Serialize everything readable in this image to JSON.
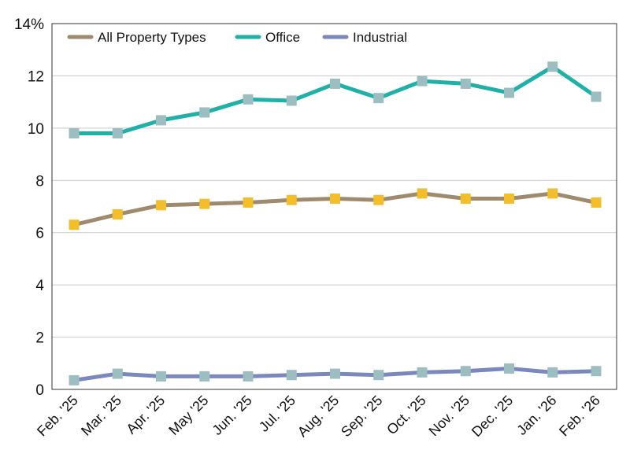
{
  "chart_data": {
    "type": "line",
    "title": "",
    "xlabel": "",
    "ylabel": "",
    "categories": [
      "Feb. '25",
      "Mar. '25",
      "Apr. '25",
      "May '25",
      "Jun. '25",
      "Jul. '25",
      "Aug. '25",
      "Sep. '25",
      "Oct. '25",
      "Nov. '25",
      "Dec. '25",
      "Jan. '26",
      "Feb. '26"
    ],
    "ylim": [
      0,
      14
    ],
    "yticks": [
      0,
      2,
      4,
      6,
      8,
      10,
      12,
      14
    ],
    "ytick_labels": [
      "0",
      "2",
      "4",
      "6",
      "8",
      "10",
      "12",
      "14%"
    ],
    "grid": true,
    "legend_position": "top-left",
    "series": [
      {
        "name": "All Property Types",
        "line_color": "#a08a6e",
        "marker_color": "#f2bf2a",
        "values": [
          6.3,
          6.7,
          7.05,
          7.1,
          7.15,
          7.25,
          7.3,
          7.25,
          7.5,
          7.3,
          7.3,
          7.5,
          7.15
        ]
      },
      {
        "name": "Office",
        "line_color": "#1fb1a8",
        "marker_color": "#9cbec0",
        "values": [
          9.8,
          9.8,
          10.3,
          10.6,
          11.1,
          11.05,
          11.7,
          11.15,
          11.8,
          11.7,
          11.35,
          12.35,
          11.2
        ]
      },
      {
        "name": "Industrial",
        "line_color": "#7b88bd",
        "marker_color": "#9cbec0",
        "values": [
          0.35,
          0.6,
          0.5,
          0.5,
          0.5,
          0.55,
          0.6,
          0.55,
          0.65,
          0.7,
          0.8,
          0.65,
          0.7
        ]
      }
    ]
  }
}
